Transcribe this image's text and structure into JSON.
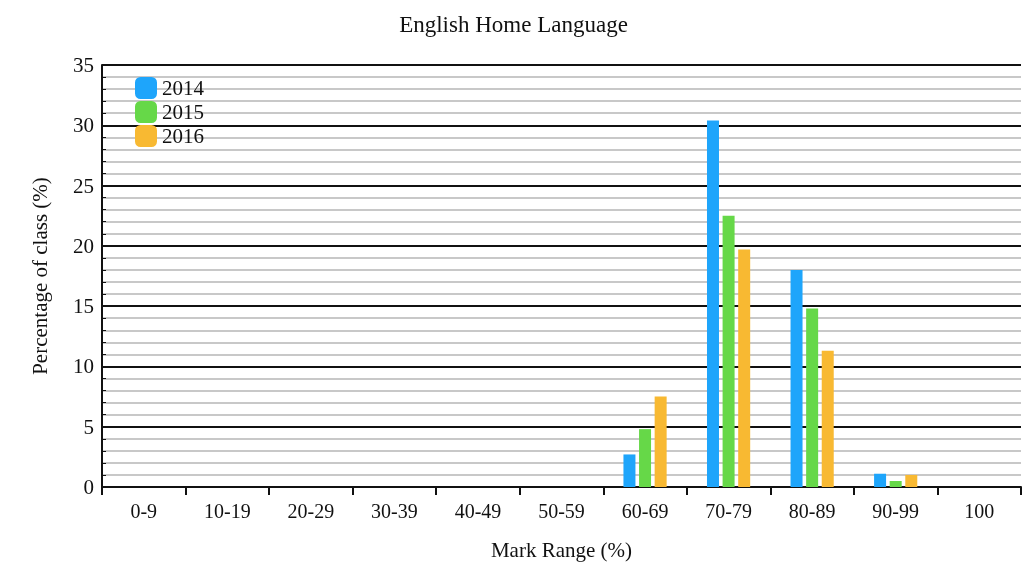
{
  "chart_data": {
    "type": "bar",
    "title": "English Home Language",
    "xlabel": "Mark Range (%)",
    "ylabel": "Percentage of class (%)",
    "categories": [
      "0-9",
      "10-19",
      "20-29",
      "30-39",
      "40-49",
      "50-59",
      "60-69",
      "70-79",
      "80-89",
      "90-99",
      "100"
    ],
    "series": [
      {
        "name": "2014",
        "color": "#1ea5fb",
        "values": [
          0,
          0,
          0,
          0,
          0,
          0,
          2.7,
          30.4,
          18.0,
          1.1,
          0
        ]
      },
      {
        "name": "2015",
        "color": "#66d848",
        "values": [
          0,
          0,
          0,
          0,
          0,
          0,
          4.8,
          22.5,
          14.8,
          0.5,
          0
        ]
      },
      {
        "name": "2016",
        "color": "#f8b932",
        "values": [
          0,
          0,
          0,
          0,
          0,
          0,
          7.5,
          19.7,
          11.3,
          1.0,
          0
        ]
      }
    ],
    "ylim": [
      0,
      35
    ],
    "yticks": [
      0,
      5,
      10,
      15,
      20,
      25,
      30,
      35
    ],
    "grid": "y",
    "legend": "top left"
  }
}
